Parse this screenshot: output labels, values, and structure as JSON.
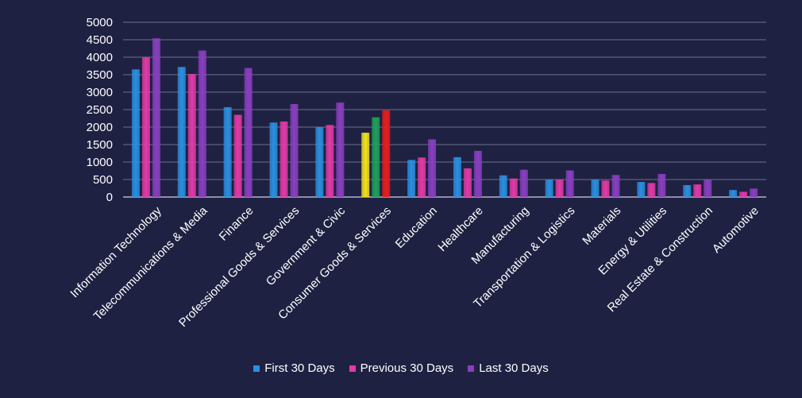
{
  "chart_data": {
    "type": "bar",
    "categories": [
      "Information Technology",
      "Telecommunications & Media",
      "Finance",
      "Professional Goods & Services",
      "Government & Civic",
      "Consumer Goods &  Services",
      "Education",
      "Healthcare",
      "Manufacturing",
      "Transportation & Logistics",
      "Materials",
      "Energy & Utilities",
      "Real Estate & Construction",
      "Automotive"
    ],
    "series": [
      {
        "name": "First 30 Days",
        "color": "#2a8fe0",
        "values": [
          3650,
          3720,
          2570,
          2130,
          2000,
          1840,
          1060,
          1140,
          620,
          500,
          490,
          430,
          340,
          200
        ]
      },
      {
        "name": "Previous 30 Days",
        "color": "#e23aa8",
        "values": [
          3990,
          3520,
          2350,
          2160,
          2060,
          2280,
          1130,
          820,
          530,
          490,
          470,
          400,
          360,
          150
        ]
      },
      {
        "name": "Last 30 Days",
        "color": "#8a3fc0",
        "values": [
          4540,
          4190,
          3690,
          2660,
          2700,
          2480,
          1650,
          1320,
          780,
          760,
          630,
          660,
          490,
          240
        ]
      }
    ],
    "highlight": {
      "category_index": 5,
      "colors": [
        "#f2e21c",
        "#1fa05a",
        "#e81d1d"
      ]
    },
    "yticks": [
      0,
      500,
      1000,
      1500,
      2000,
      2500,
      3000,
      3500,
      4000,
      4500,
      5000
    ],
    "ylim": [
      0,
      5000
    ],
    "grid": true,
    "legend_position": "bottom",
    "title": "",
    "xlabel": "",
    "ylabel": ""
  }
}
